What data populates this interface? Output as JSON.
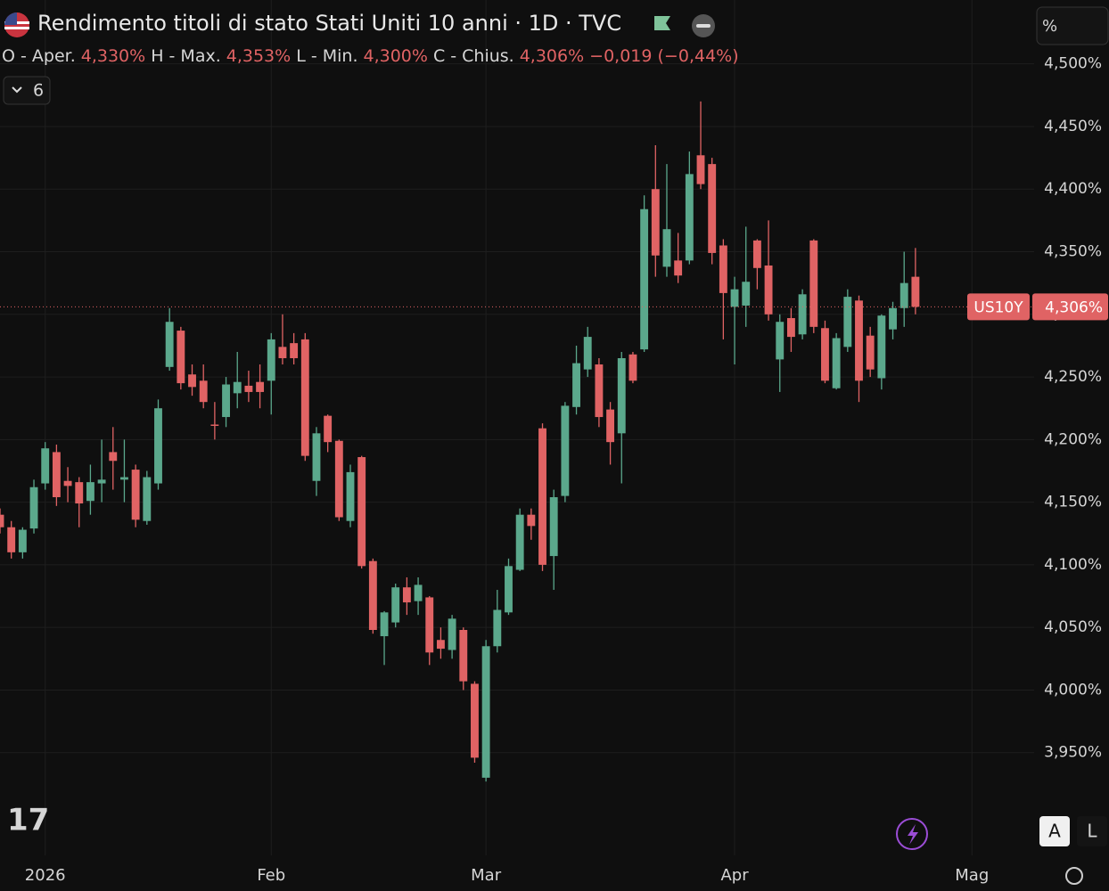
{
  "chart_data": {
    "type": "candlestick",
    "title": "Rendimento titoli di stato Stati Uniti 10 anni · 1D · TVC",
    "ohlc_legend": [
      {
        "label": "O - Aper.",
        "value": "4,330%"
      },
      {
        "label": "H - Max.",
        "value": "4,353%"
      },
      {
        "label": "L - Min.",
        "value": "4,300%"
      },
      {
        "label": "C - Chius.",
        "value": "4,306%"
      }
    ],
    "change": "−0,019 (−0,44%)",
    "indicators_count": "6",
    "unit_button": "%",
    "symbol": "US10Y",
    "last_price_label": "4,306%",
    "scale_buttons": [
      "A",
      "L"
    ],
    "up_color": "#5ba88c",
    "down_color": "#e06364",
    "x": [
      0,
      1,
      2,
      3,
      4,
      5,
      6,
      7,
      8,
      9,
      10,
      11,
      12,
      13,
      14,
      15,
      16,
      17,
      18,
      19,
      20,
      21,
      22,
      23,
      24,
      25,
      26,
      27,
      28,
      29,
      30,
      31,
      32,
      33,
      34,
      35,
      36,
      37,
      38,
      39,
      40,
      41,
      42,
      43,
      44,
      45,
      46,
      47,
      48,
      49,
      50,
      51,
      52,
      53,
      54,
      55,
      56,
      57,
      58,
      59,
      60,
      61,
      62,
      63,
      64,
      65,
      66,
      67,
      68,
      69,
      70,
      71,
      72,
      73,
      74,
      75,
      76,
      77,
      78,
      79,
      80,
      81
    ],
    "open": [
      4.14,
      4.13,
      4.11,
      4.129,
      4.165,
      4.19,
      4.167,
      4.166,
      4.151,
      4.165,
      4.19,
      4.168,
      4.176,
      4.135,
      4.165,
      4.258,
      4.287,
      4.252,
      4.247,
      4.212,
      4.218,
      4.237,
      4.243,
      4.246,
      4.247,
      4.274,
      4.277,
      4.28,
      4.167,
      4.219,
      4.199,
      4.135,
      4.186,
      4.103,
      4.043,
      4.054,
      4.082,
      4.071,
      4.074,
      4.04,
      4.032,
      4.048,
      4.005,
      3.93,
      4.035,
      4.062,
      4.096,
      4.14,
      4.209,
      4.107,
      4.155,
      4.226,
      4.256,
      4.26,
      4.224,
      4.205,
      4.268,
      4.272,
      4.4,
      4.338,
      4.343,
      4.343,
      4.427,
      4.42,
      4.355,
      4.306,
      4.307,
      4.359,
      4.339,
      4.264,
      4.297,
      4.284,
      4.359,
      4.289,
      4.241,
      4.274,
      4.311,
      4.283,
      4.249,
      4.288,
      4.305,
      4.33
    ],
    "high": [
      4.145,
      4.135,
      4.13,
      4.168,
      4.198,
      4.196,
      4.178,
      4.17,
      4.18,
      4.2,
      4.21,
      4.2,
      4.18,
      4.175,
      4.232,
      4.305,
      4.29,
      4.26,
      4.26,
      4.23,
      4.25,
      4.27,
      4.255,
      4.26,
      4.285,
      4.3,
      4.285,
      4.285,
      4.21,
      4.22,
      4.2,
      4.18,
      4.187,
      4.105,
      4.063,
      4.085,
      4.09,
      4.09,
      4.075,
      4.05,
      4.06,
      4.05,
      4.007,
      4.04,
      4.08,
      4.105,
      4.145,
      4.145,
      4.213,
      4.16,
      4.23,
      4.275,
      4.29,
      4.265,
      4.23,
      4.27,
      4.27,
      4.395,
      4.435,
      4.42,
      4.365,
      4.43,
      4.47,
      4.425,
      4.36,
      4.33,
      4.37,
      4.36,
      4.375,
      4.3,
      4.305,
      4.32,
      4.36,
      4.295,
      4.285,
      4.32,
      4.315,
      4.29,
      4.3,
      4.31,
      4.35,
      4.353
    ],
    "low": [
      4.125,
      4.105,
      4.105,
      4.125,
      4.16,
      4.147,
      4.15,
      4.13,
      4.14,
      4.15,
      4.16,
      4.15,
      4.13,
      4.132,
      4.16,
      4.255,
      4.24,
      4.235,
      4.225,
      4.2,
      4.21,
      4.225,
      4.23,
      4.225,
      4.22,
      4.26,
      4.26,
      4.183,
      4.155,
      4.19,
      4.135,
      4.13,
      4.097,
      4.045,
      4.02,
      4.05,
      4.06,
      4.06,
      4.02,
      4.025,
      4.025,
      4.0,
      3.942,
      3.927,
      4.03,
      4.06,
      4.095,
      4.12,
      4.095,
      4.08,
      4.15,
      4.22,
      4.25,
      4.21,
      4.18,
      4.165,
      4.245,
      4.27,
      4.33,
      4.33,
      4.325,
      4.34,
      4.4,
      4.34,
      4.28,
      4.26,
      4.29,
      4.32,
      4.295,
      4.238,
      4.27,
      4.28,
      4.285,
      4.245,
      4.24,
      4.27,
      4.23,
      4.25,
      4.24,
      4.28,
      4.29,
      4.3
    ],
    "close": [
      4.13,
      4.11,
      4.128,
      4.162,
      4.193,
      4.154,
      4.163,
      4.149,
      4.166,
      4.168,
      4.183,
      4.17,
      4.136,
      4.17,
      4.225,
      4.294,
      4.245,
      4.242,
      4.23,
      4.211,
      4.244,
      4.246,
      4.238,
      4.238,
      4.28,
      4.265,
      4.265,
      4.187,
      4.205,
      4.198,
      4.138,
      4.174,
      4.099,
      4.048,
      4.062,
      4.082,
      4.07,
      4.084,
      4.03,
      4.033,
      4.057,
      4.007,
      3.946,
      4.035,
      4.064,
      4.099,
      4.14,
      4.131,
      4.1,
      4.154,
      4.227,
      4.261,
      4.282,
      4.218,
      4.198,
      4.265,
      4.247,
      4.384,
      4.347,
      4.368,
      4.331,
      4.412,
      4.404,
      4.349,
      4.317,
      4.32,
      4.326,
      4.337,
      4.3,
      4.294,
      4.282,
      4.316,
      4.29,
      4.247,
      4.281,
      4.314,
      4.247,
      4.256,
      4.299,
      4.305,
      4.325,
      4.306
    ],
    "xlim": [
      0,
      91.5
    ],
    "xticks": [
      {
        "value": 4,
        "label": "2026"
      },
      {
        "value": 24,
        "label": "Feb"
      },
      {
        "value": 43,
        "label": "Mar"
      },
      {
        "value": 65,
        "label": "Apr"
      },
      {
        "value": 86,
        "label": "Mag"
      }
    ],
    "ylim": [
      3.868,
      4.551
    ],
    "yticks": [
      {
        "value": 3.95,
        "label": "3,950%"
      },
      {
        "value": 4.0,
        "label": "4,000%"
      },
      {
        "value": 4.05,
        "label": "4,050%"
      },
      {
        "value": 4.1,
        "label": "4,100%"
      },
      {
        "value": 4.15,
        "label": "4,150%"
      },
      {
        "value": 4.2,
        "label": "4,200%"
      },
      {
        "value": 4.25,
        "label": "4,250%"
      },
      {
        "value": 4.3,
        "label": "4,300%"
      },
      {
        "value": 4.35,
        "label": "4,350%"
      },
      {
        "value": 4.4,
        "label": "4,400%"
      },
      {
        "value": 4.45,
        "label": "4,450%"
      },
      {
        "value": 4.5,
        "label": "4,500%"
      }
    ],
    "grid": true
  }
}
